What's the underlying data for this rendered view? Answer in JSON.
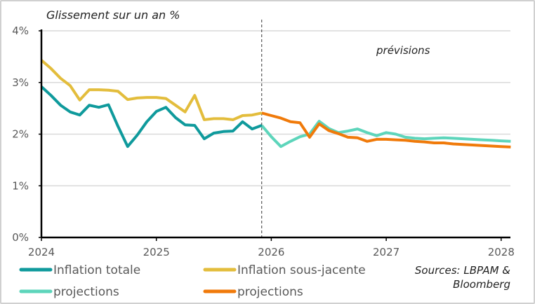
{
  "chart_data": {
    "type": "line",
    "title": "Glissement sur un an %",
    "annotation": "prévisions",
    "source": [
      "Sources: LBPAM &",
      "Bloomberg"
    ],
    "x_start": "2024-01",
    "x_frequency": "monthly",
    "xlim": [
      "2024-01",
      "2028-02"
    ],
    "x_ticks": [
      "2024",
      "2025",
      "2026",
      "2027",
      "2028"
    ],
    "ylim": [
      0,
      4
    ],
    "y_ticks": [
      "0%",
      "1%",
      "2%",
      "3%",
      "4%"
    ],
    "grid": true,
    "forecast_start": "2025-12",
    "legend_position": "bottom",
    "series": [
      {
        "name": "Inflation totale",
        "color": "#0f9a9c",
        "start_index": 0,
        "values": [
          2.92,
          2.75,
          2.56,
          2.43,
          2.37,
          2.56,
          2.52,
          2.57,
          2.15,
          1.76,
          1.98,
          2.24,
          2.44,
          2.52,
          2.32,
          2.18,
          2.17,
          1.91,
          2.02,
          2.05,
          2.06,
          2.24,
          2.1,
          2.17
        ]
      },
      {
        "name": "Inflation sous-jacente",
        "color": "#e3bd3c",
        "start_index": 0,
        "values": [
          3.43,
          3.27,
          3.08,
          2.94,
          2.66,
          2.86,
          2.86,
          2.85,
          2.83,
          2.67,
          2.7,
          2.71,
          2.71,
          2.69,
          2.56,
          2.43,
          2.75,
          2.28,
          2.3,
          2.3,
          2.28,
          2.36,
          2.37,
          2.41
        ]
      },
      {
        "name": "projections",
        "color": "#5dd5bb",
        "start_index": 23,
        "values": [
          2.17,
          1.95,
          1.76,
          1.86,
          1.95,
          2.0,
          2.25,
          2.11,
          2.03,
          2.06,
          2.1,
          2.03,
          1.97,
          2.03,
          2.0,
          1.94,
          1.92,
          1.91,
          1.92,
          1.93,
          1.92,
          1.91,
          1.9,
          1.89,
          1.88,
          1.87,
          1.86
        ]
      },
      {
        "name": "projections",
        "color": "#f07a0a",
        "start_index": 23,
        "values": [
          2.41,
          2.36,
          2.31,
          2.24,
          2.22,
          1.94,
          2.2,
          2.07,
          2.01,
          1.94,
          1.93,
          1.86,
          1.9,
          1.9,
          1.89,
          1.88,
          1.86,
          1.85,
          1.83,
          1.83,
          1.81,
          1.8,
          1.79,
          1.78,
          1.77,
          1.76,
          1.75
        ]
      }
    ]
  }
}
